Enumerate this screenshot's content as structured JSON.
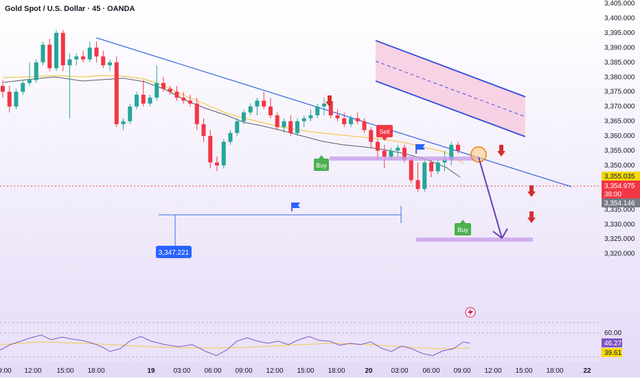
{
  "header": {
    "title": "Gold Spot / U.S. Dollar · 45 · OANDA"
  },
  "colors": {
    "up": "#26a69a",
    "down": "#f23645",
    "trend": "#3d6ee0",
    "zone": "#d0a4f0",
    "bgTop": "#ffffff",
    "bgBottom": "#e6dcf7",
    "rsi": "#7e57c2",
    "rsiMa": "#f2c94c"
  },
  "price_axis": {
    "ticks": [
      "3,405.000",
      "3,400.000",
      "3,395.000",
      "3,390.000",
      "3,385.000",
      "3,380.000",
      "3,375.000",
      "3,370.000",
      "3,365.000",
      "3,360.000",
      "3,355.000",
      "3,350.000",
      "3,345.000",
      "3,340.000",
      "3,335.000",
      "3,330.000",
      "3,325.000",
      "3,320.000"
    ],
    "labels": [
      {
        "text": "3,355.035",
        "bg": "#f5d90a",
        "fg": "#131722"
      },
      {
        "text": "3,354.975",
        "bg": "#f23645",
        "fg": "#ffffff"
      },
      {
        "text": "38:00",
        "bg": "#f23645",
        "fg": "#ffffff"
      },
      {
        "text": "3,354.146",
        "bg": "#787b86",
        "fg": "#ffffff"
      }
    ]
  },
  "time_axis": {
    "labels": [
      "9:00",
      "12:00",
      "15:00",
      "18:00",
      "19",
      "03:00",
      "06:00",
      "09:00",
      "12:00",
      "15:00",
      "18:00",
      "20",
      "03:00",
      "06:00",
      "09:00",
      "12:00",
      "15:00",
      "18:00",
      "22"
    ]
  },
  "annotations": {
    "low_label": "3,347.221",
    "sell_tag": "Sell",
    "buy_tag_1": "Buy",
    "buy_tag_2": "Buy"
  },
  "rsi": {
    "level_label": "60.00",
    "value_1": "46.27",
    "value_2": "39.61"
  },
  "chart_data": {
    "type": "candlestick",
    "title": "Gold Spot / U.S. Dollar · 45 · OANDA",
    "ylim": [
      3318,
      3405
    ],
    "ohlc": [
      [
        3377,
        3379,
        3373,
        3375
      ],
      [
        3375,
        3377,
        3368,
        3370
      ],
      [
        3370,
        3376,
        3369,
        3375
      ],
      [
        3375,
        3379,
        3374,
        3378
      ],
      [
        3378,
        3385,
        3377,
        3379
      ],
      [
        3379,
        3386,
        3378,
        3385
      ],
      [
        3385,
        3392,
        3384,
        3391
      ],
      [
        3391,
        3393,
        3382,
        3383
      ],
      [
        3383,
        3396,
        3382,
        3395
      ],
      [
        3395,
        3396,
        3382,
        3384
      ],
      [
        3384,
        3388,
        3366,
        3386
      ],
      [
        3386,
        3388,
        3384,
        3387
      ],
      [
        3387,
        3389,
        3385,
        3386
      ],
      [
        3386,
        3392,
        3385,
        3390
      ],
      [
        3390,
        3392,
        3385,
        3387
      ],
      [
        3387,
        3389,
        3383,
        3384
      ],
      [
        3384,
        3386,
        3382,
        3385
      ],
      [
        3385,
        3387,
        3363,
        3364
      ],
      [
        3364,
        3366,
        3362,
        3365
      ],
      [
        3365,
        3371,
        3364,
        3370
      ],
      [
        3370,
        3375,
        3369,
        3374
      ],
      [
        3374,
        3379,
        3370,
        3371
      ],
      [
        3371,
        3374,
        3370,
        3373
      ],
      [
        3373,
        3384,
        3372,
        3378
      ],
      [
        3378,
        3380,
        3375,
        3376
      ],
      [
        3376,
        3377,
        3374,
        3375
      ],
      [
        3375,
        3377,
        3372,
        3373
      ],
      [
        3373,
        3375,
        3371,
        3372
      ],
      [
        3372,
        3374,
        3370,
        3371
      ],
      [
        3371,
        3373,
        3362,
        3364
      ],
      [
        3364,
        3366,
        3358,
        3360
      ],
      [
        3360,
        3362,
        3349,
        3351
      ],
      [
        3351,
        3353,
        3348,
        3350
      ],
      [
        3350,
        3359,
        3349,
        3358
      ],
      [
        3358,
        3362,
        3357,
        3361
      ],
      [
        3361,
        3366,
        3360,
        3365
      ],
      [
        3365,
        3369,
        3364,
        3368
      ],
      [
        3368,
        3371,
        3367,
        3370
      ],
      [
        3370,
        3373,
        3367,
        3372
      ],
      [
        3372,
        3375,
        3369,
        3370
      ],
      [
        3370,
        3373,
        3366,
        3367
      ],
      [
        3367,
        3368,
        3362,
        3363
      ],
      [
        3363,
        3366,
        3361,
        3365
      ],
      [
        3365,
        3367,
        3360,
        3361
      ],
      [
        3361,
        3366,
        3360,
        3365
      ],
      [
        3365,
        3367,
        3363,
        3366
      ],
      [
        3366,
        3369,
        3365,
        3367
      ],
      [
        3367,
        3371,
        3366,
        3370
      ],
      [
        3370,
        3373,
        3367,
        3371
      ],
      [
        3371,
        3373,
        3366,
        3367
      ],
      [
        3367,
        3369,
        3365,
        3366
      ],
      [
        3366,
        3368,
        3363,
        3364
      ],
      [
        3364,
        3367,
        3363,
        3366
      ],
      [
        3366,
        3368,
        3364,
        3365
      ],
      [
        3365,
        3366,
        3361,
        3362
      ],
      [
        3362,
        3363,
        3356,
        3358
      ],
      [
        3358,
        3359,
        3352,
        3355
      ],
      [
        3355,
        3357,
        3349,
        3353
      ],
      [
        3353,
        3356,
        3352,
        3355
      ],
      [
        3355,
        3357,
        3353,
        3356
      ],
      [
        3356,
        3357,
        3351,
        3352
      ],
      [
        3352,
        3353,
        3344,
        3345
      ],
      [
        3345,
        3351,
        3341,
        3342
      ],
      [
        3342,
        3352,
        3341,
        3351
      ],
      [
        3351,
        3352,
        3346,
        3348
      ],
      [
        3348,
        3352,
        3347,
        3351
      ],
      [
        3351,
        3355,
        3348,
        3352
      ],
      [
        3352,
        3358,
        3350,
        3357
      ],
      [
        3357,
        3358,
        3354,
        3355
      ]
    ]
  }
}
